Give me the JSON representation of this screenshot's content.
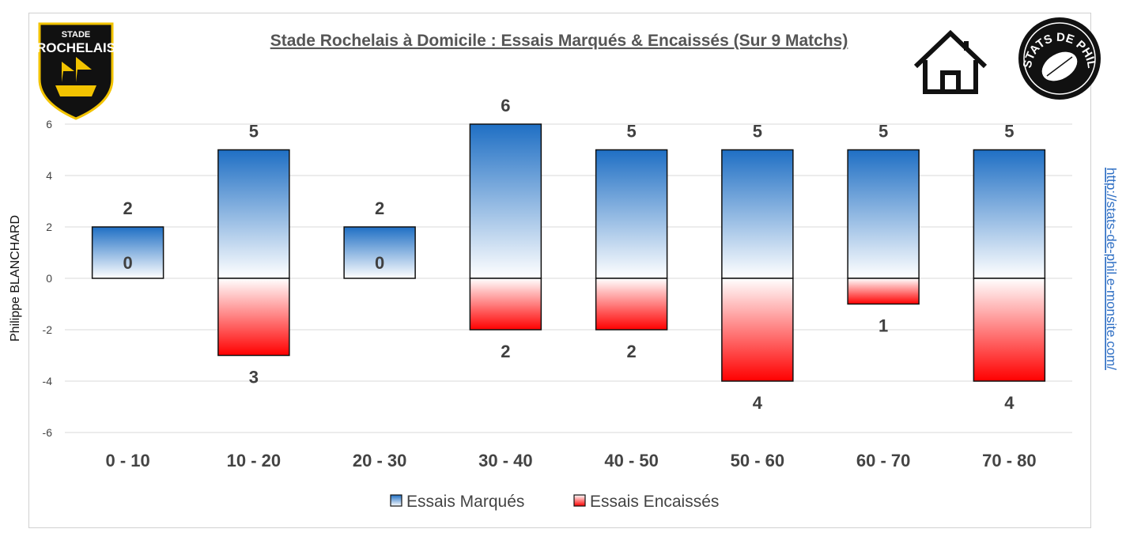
{
  "chart_data": {
    "type": "bar",
    "title": "Stade Rochelais à Domicile : Essais Marqués & Encaissés (Sur 9 Matchs)",
    "categories": [
      "0 - 10",
      "10 - 20",
      "20 - 30",
      "30 - 40",
      "40 - 50",
      "50 - 60",
      "60 - 70",
      "70 - 80"
    ],
    "series": [
      {
        "name": "Essais Marqués",
        "values": [
          2,
          5,
          2,
          6,
          5,
          5,
          5,
          5
        ],
        "color": "#1f6fc4"
      },
      {
        "name": "Essais Encaissés",
        "values": [
          0,
          3,
          0,
          2,
          2,
          4,
          1,
          4
        ],
        "color": "#ff0000"
      }
    ],
    "plotted_sign": {
      "Essais Marqués": 1,
      "Essais Encaissés": -1
    },
    "ylim": [
      -6,
      6
    ],
    "yticks": [
      6,
      4,
      2,
      0,
      -2,
      -4,
      -6
    ],
    "grid": true,
    "xlabel": "",
    "ylabel": "",
    "legend_position": "bottom"
  },
  "side_text": {
    "left": "Philippe BLANCHARD",
    "right": "http://stats-de-phil.e-monsite.com/"
  },
  "logos": {
    "club_line1": "STADE",
    "club_line2": "ROCHELAIS",
    "stamp": "STATS DE PHIL"
  },
  "colors": {
    "axis_text": "#444444",
    "grid": "#d9d9d9",
    "logo_black": "#111111",
    "logo_yellow": "#f2c300"
  }
}
